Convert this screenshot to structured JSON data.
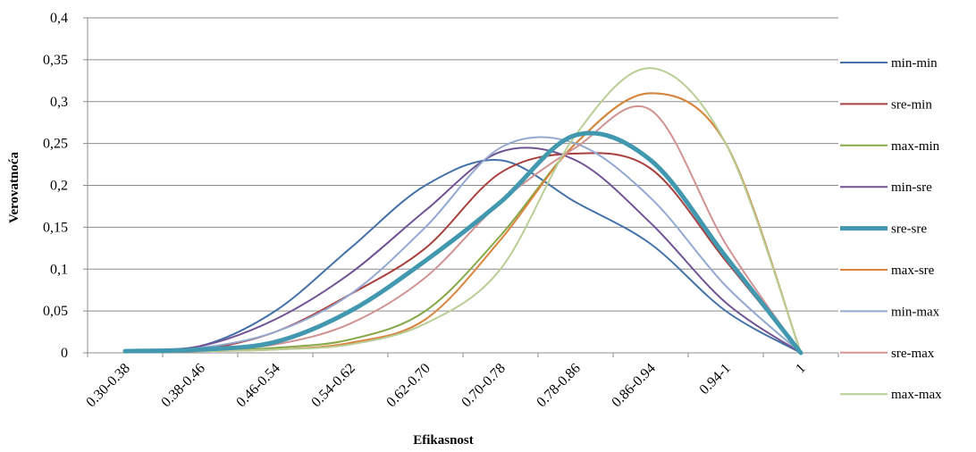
{
  "chart_data": {
    "type": "line",
    "title": "",
    "xlabel": "Efikasnost",
    "ylabel": "Verovatnoća",
    "ylim": [
      0,
      0.4
    ],
    "yticks": [
      0,
      0.05,
      0.1,
      0.15,
      0.2,
      0.25,
      0.3,
      0.35,
      0.4
    ],
    "ytick_labels": [
      "0",
      "0,05",
      "0,1",
      "0,15",
      "0,2",
      "0,25",
      "0,3",
      "0,35",
      "0,4"
    ],
    "categories": [
      "0.30-0.38",
      "0.38-0.46",
      "0.46-0.54",
      "0.54-0.62",
      "0.62-0.70",
      "0.70-0.78",
      "0.78-0.86",
      "0.86-0.94",
      "0.94-1",
      "1"
    ],
    "grid": "horizontal",
    "legend_position": "right",
    "series": [
      {
        "name": "min-min",
        "color": "#4472a8",
        "bold": false,
        "values": [
          0.003,
          0.008,
          0.05,
          0.125,
          0.2,
          0.23,
          0.18,
          0.13,
          0.05,
          0
        ]
      },
      {
        "name": "sre-min",
        "color": "#a8413e",
        "bold": false,
        "values": [
          0.002,
          0.004,
          0.025,
          0.07,
          0.125,
          0.215,
          0.238,
          0.22,
          0.11,
          0
        ]
      },
      {
        "name": "max-min",
        "color": "#86a847",
        "bold": false,
        "values": [
          0.001,
          0.002,
          0.006,
          0.016,
          0.05,
          0.14,
          0.25,
          0.31,
          0.25,
          0
        ]
      },
      {
        "name": "min-sre",
        "color": "#6f5393",
        "bold": false,
        "values": [
          0.003,
          0.008,
          0.04,
          0.095,
          0.17,
          0.24,
          0.23,
          0.155,
          0.06,
          0
        ]
      },
      {
        "name": "sre-sre",
        "color": "#4198af",
        "bold": true,
        "values": [
          0.002,
          0.004,
          0.013,
          0.05,
          0.11,
          0.18,
          0.26,
          0.23,
          0.115,
          0
        ]
      },
      {
        "name": "max-sre",
        "color": "#db843d",
        "bold": false,
        "values": [
          0.001,
          0.002,
          0.004,
          0.012,
          0.04,
          0.135,
          0.25,
          0.31,
          0.25,
          0
        ]
      },
      {
        "name": "min-max",
        "color": "#93a9cf",
        "bold": false,
        "values": [
          0.002,
          0.006,
          0.025,
          0.07,
          0.15,
          0.245,
          0.25,
          0.185,
          0.08,
          0
        ]
      },
      {
        "name": "sre-max",
        "color": "#d19392",
        "bold": false,
        "values": [
          0.001,
          0.003,
          0.01,
          0.035,
          0.09,
          0.18,
          0.245,
          0.29,
          0.13,
          0
        ]
      },
      {
        "name": "max-max",
        "color": "#b9cd96",
        "bold": false,
        "values": [
          0.001,
          0.002,
          0.004,
          0.01,
          0.035,
          0.1,
          0.26,
          0.34,
          0.25,
          0
        ]
      }
    ]
  }
}
